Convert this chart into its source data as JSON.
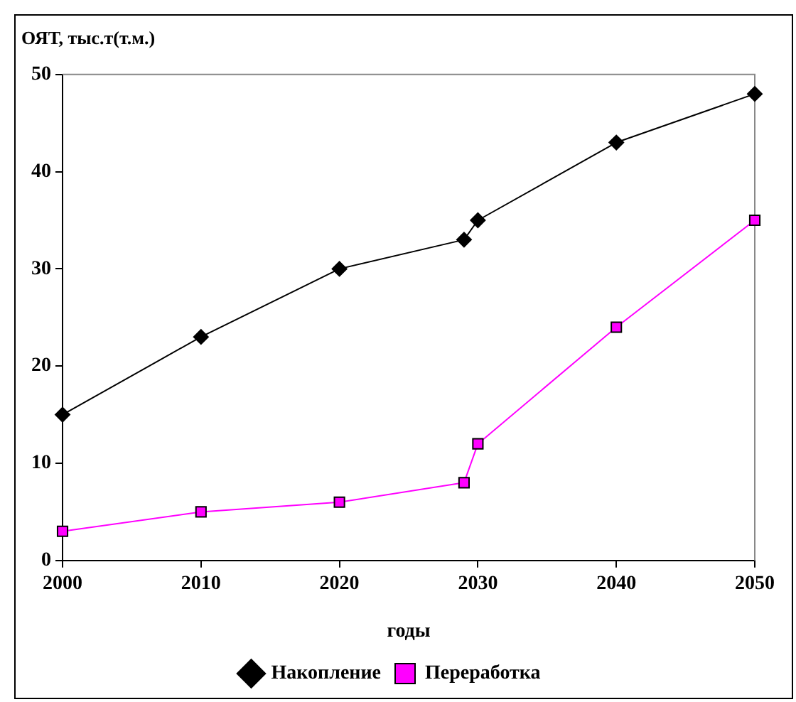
{
  "chart_data": {
    "type": "line",
    "ylabel": "ОЯТ, тыс.т(т.м.)",
    "xlabel": "годы",
    "x": [
      2000,
      2010,
      2020,
      2029,
      2030,
      2040,
      2050
    ],
    "series": [
      {
        "name": "Накопление",
        "color": "#000000",
        "marker": "diamond",
        "values": [
          15,
          23,
          30,
          33,
          35,
          43,
          48
        ]
      },
      {
        "name": "Переработка",
        "color": "#ff00ff",
        "marker": "square",
        "values": [
          3,
          5,
          6,
          8,
          12,
          24,
          35
        ]
      }
    ],
    "xlim": [
      2000,
      2050
    ],
    "xticks": [
      2000,
      2010,
      2020,
      2030,
      2040,
      2050
    ],
    "ylim": [
      0,
      50
    ],
    "yticks": [
      0,
      10,
      20,
      30,
      40,
      50
    ],
    "grid": false,
    "legend": "bottom"
  }
}
